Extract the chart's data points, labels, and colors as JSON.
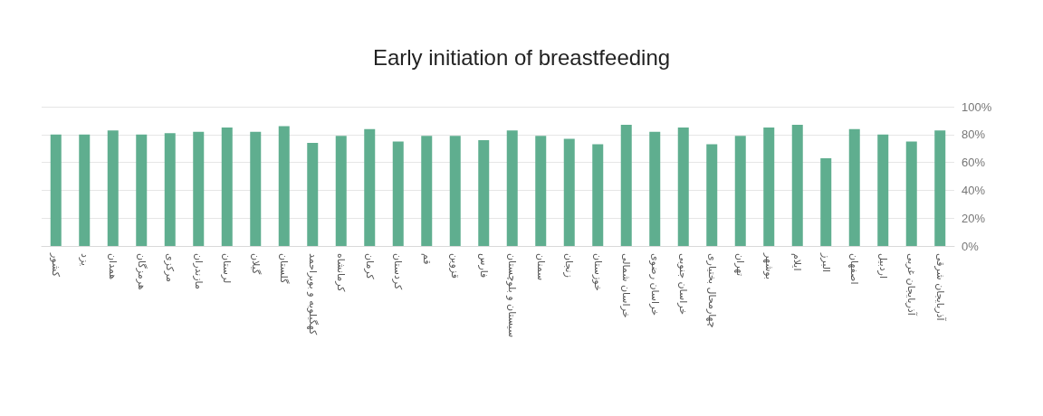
{
  "chart_data": {
    "type": "bar",
    "title": "Early initiation of breastfeeding",
    "categories": [
      "کشور",
      "یزد",
      "همدان",
      "هرمزگان",
      "مرکزی",
      "مازندران",
      "لرستان",
      "گیلان",
      "گلستان",
      "کهگیلویه و بویراحمد",
      "کرمانشاه",
      "کرمان",
      "کردستان",
      "قم",
      "قزوین",
      "فارس",
      "سیستان و بلوچستان",
      "سمنان",
      "زنجان",
      "خوزستان",
      "خراسان شمالی",
      "خراسان رضوی",
      "خراسان جنوبی",
      "چهارمحال بختیاری",
      "تهران",
      "بوشهر",
      "ایلام",
      "البرز",
      "اصفهان",
      "اردبیل",
      "آذربایجان غربی",
      "آذربایجان شرقی"
    ],
    "values": [
      80,
      80,
      83,
      80,
      81,
      82,
      85,
      82,
      86,
      74,
      79,
      84,
      75,
      79,
      79,
      76,
      83,
      79,
      77,
      73,
      87,
      82,
      85,
      73,
      79,
      85,
      87,
      63,
      84,
      80,
      75,
      83
    ],
    "color": "#5fae8f",
    "ylim": [
      0,
      100
    ],
    "yticks": [
      {
        "value": 0,
        "label": "0%"
      },
      {
        "value": 20,
        "label": "20%"
      },
      {
        "value": 40,
        "label": "40%"
      },
      {
        "value": 60,
        "label": "60%"
      },
      {
        "value": 80,
        "label": "80%"
      },
      {
        "value": 100,
        "label": "100%"
      }
    ],
    "grid": "y"
  }
}
